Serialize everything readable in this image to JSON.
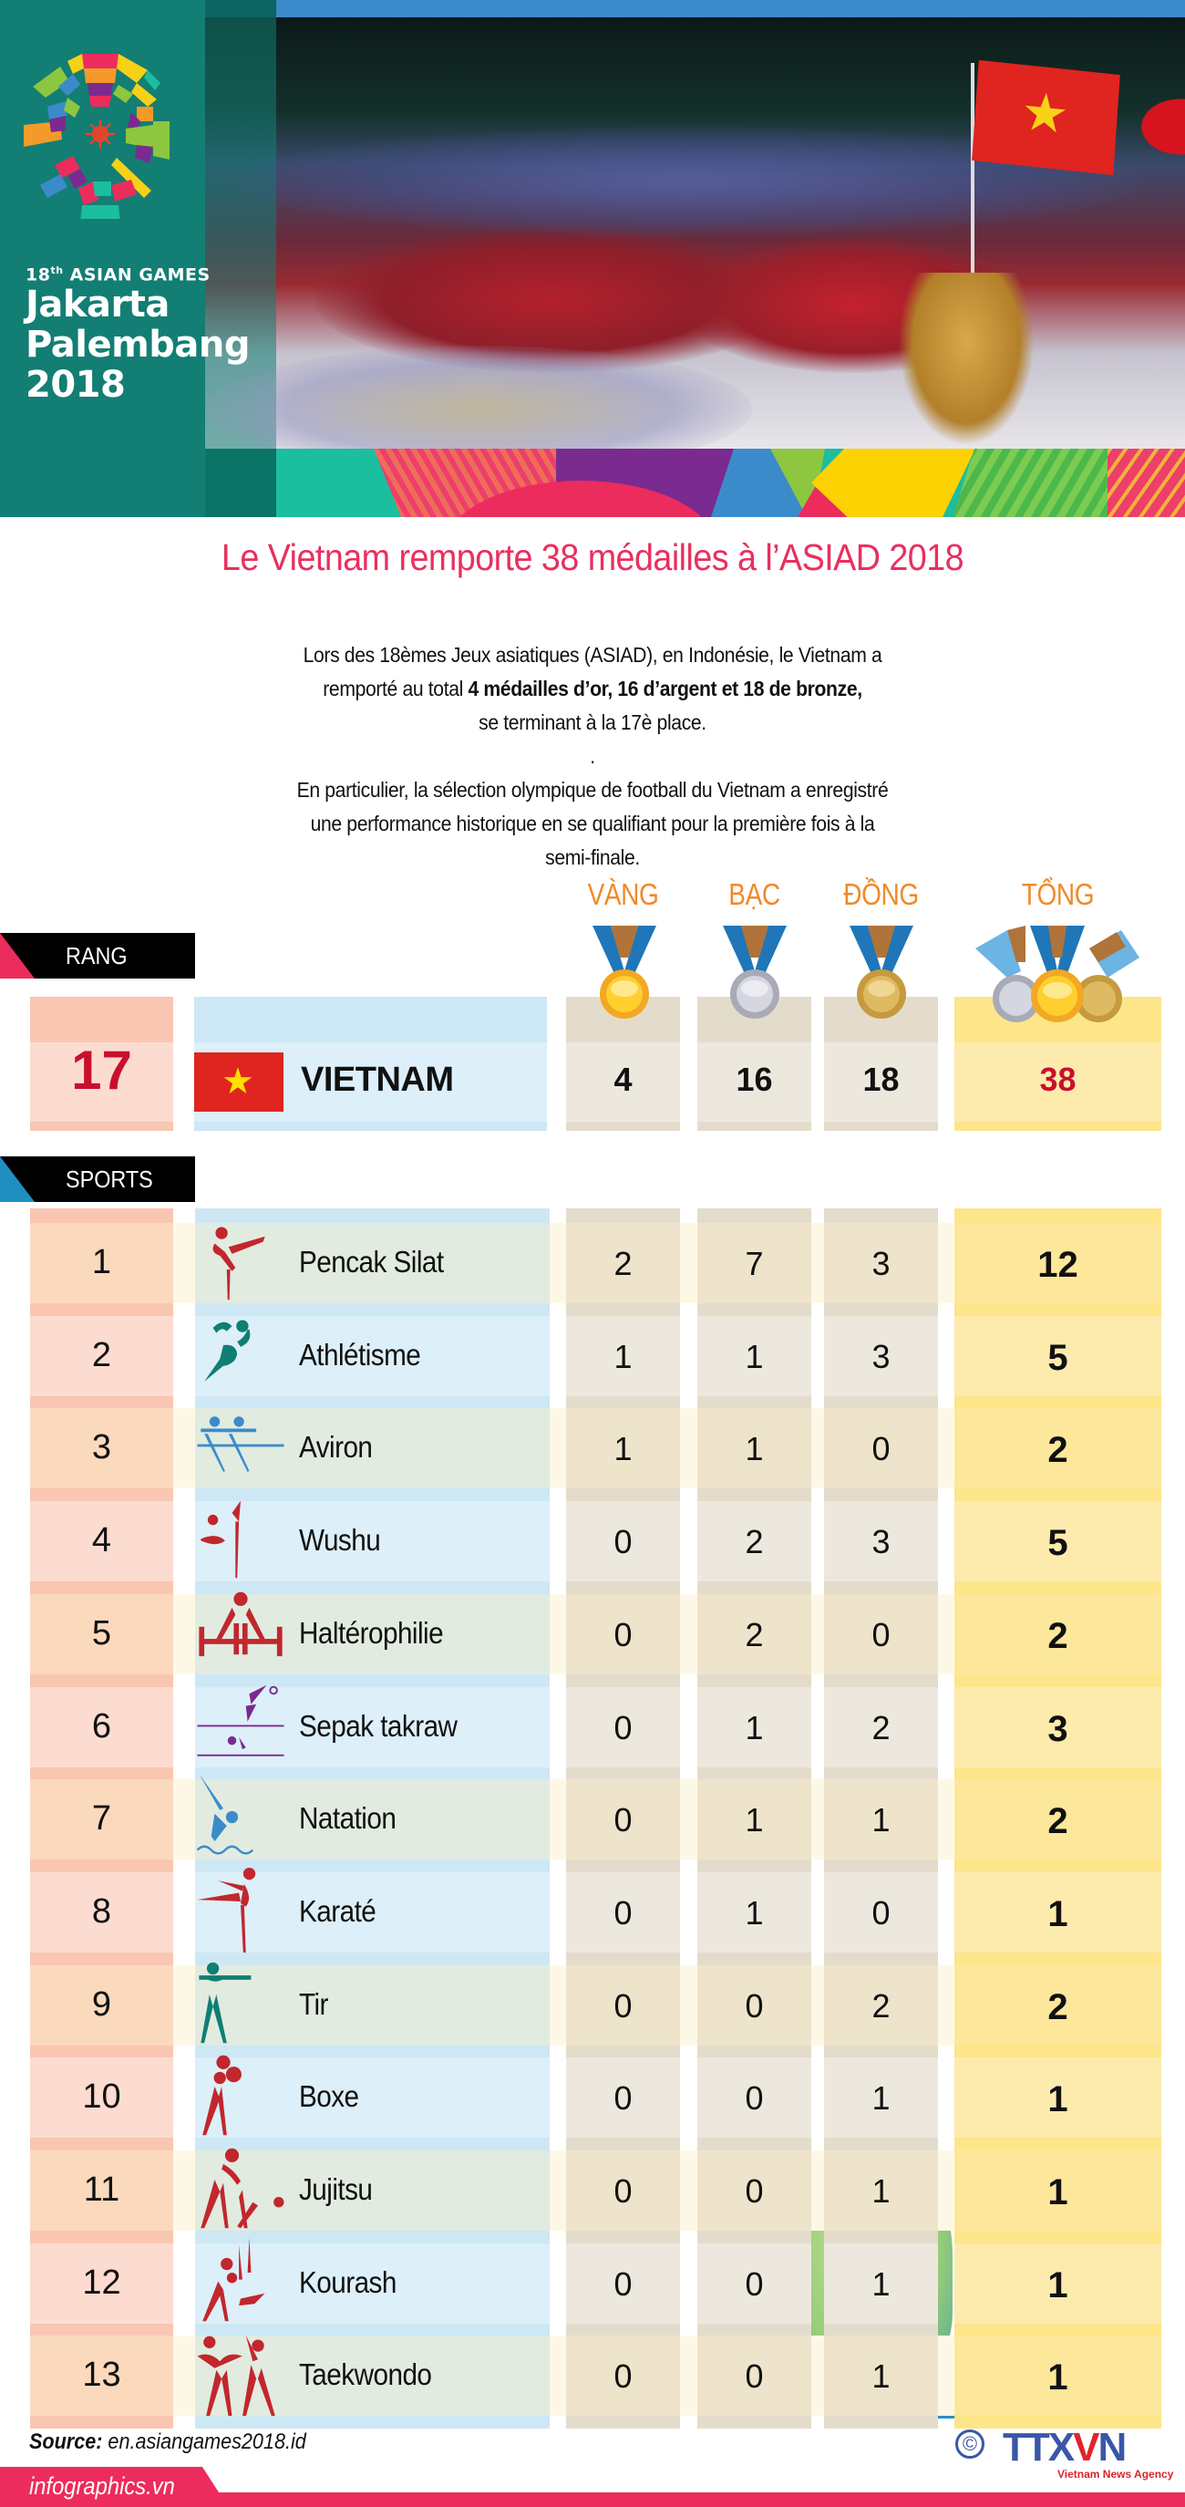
{
  "header": {
    "logo_small": "18",
    "logo_small_sup": "th",
    "logo_small_rest": " ASIAN GAMES",
    "logo_line1": "Jakarta",
    "logo_line2": "Palembang",
    "logo_line3": "2018",
    "colors": {
      "teal": "#137E74",
      "blue_bar": "#3B8BCB"
    }
  },
  "title": "Le Vietnam remporte 38 médailles à l’ASIAD 2018",
  "intro": {
    "line1": "Lors des 18èmes Jeux asiatiques (ASIAD), en Indonésie, le Vietnam a",
    "line2_pre": "remporté au total ",
    "line2_bold": "4 médailles d’or, 16 d’argent et 18 de bronze,",
    "line3": "se terminant à la 17è place.",
    "separator": ".",
    "line4": "En particulier, la sélection olympique de football du Vietnam a enregistré",
    "line5": "une performance historique en se qualifiant pour la première fois à la",
    "line6": "semi-finale."
  },
  "medal_headers": {
    "gold": "VÀNG",
    "silver": "BẠC",
    "bronze": "ĐỒNG",
    "total": "TỔNG"
  },
  "rank_tag": "RANG",
  "sports_tag": "SPORTS",
  "country": {
    "rank": "17",
    "name": "VIETNAM",
    "gold": "4",
    "silver": "16",
    "bronze": "18",
    "total": "38"
  },
  "sports": [
    {
      "rank": "1",
      "name": "Pencak Silat",
      "gold": "2",
      "silver": "7",
      "bronze": "3",
      "total": "12",
      "icon": "pencak-silat-icon",
      "icon_color": "#C1272D"
    },
    {
      "rank": "2",
      "name": "Athlétisme",
      "gold": "1",
      "silver": "1",
      "bronze": "3",
      "total": "5",
      "icon": "athletics-icon",
      "icon_color": "#0F7F73"
    },
    {
      "rank": "3",
      "name": "Aviron",
      "gold": "1",
      "silver": "1",
      "bronze": "0",
      "total": "2",
      "icon": "rowing-icon",
      "icon_color": "#3B8BCB"
    },
    {
      "rank": "4",
      "name": "Wushu",
      "gold": "0",
      "silver": "2",
      "bronze": "3",
      "total": "5",
      "icon": "wushu-icon",
      "icon_color": "#C1272D"
    },
    {
      "rank": "5",
      "name": "Haltérophilie",
      "gold": "0",
      "silver": "2",
      "bronze": "0",
      "total": "2",
      "icon": "weightlifting-icon",
      "icon_color": "#C1272D"
    },
    {
      "rank": "6",
      "name": "Sepak takraw",
      "gold": "0",
      "silver": "1",
      "bronze": "2",
      "total": "3",
      "icon": "sepak-takraw-icon",
      "icon_color": "#7B2A90"
    },
    {
      "rank": "7",
      "name": "Natation",
      "gold": "0",
      "silver": "1",
      "bronze": "1",
      "total": "2",
      "icon": "swimming-icon",
      "icon_color": "#3B8BCB"
    },
    {
      "rank": "8",
      "name": "Karaté",
      "gold": "0",
      "silver": "1",
      "bronze": "0",
      "total": "1",
      "icon": "karate-icon",
      "icon_color": "#C1272D"
    },
    {
      "rank": "9",
      "name": "Tir",
      "gold": "0",
      "silver": "0",
      "bronze": "2",
      "total": "2",
      "icon": "shooting-icon",
      "icon_color": "#0F7F73"
    },
    {
      "rank": "10",
      "name": "Boxe",
      "gold": "0",
      "silver": "0",
      "bronze": "1",
      "total": "1",
      "icon": "boxing-icon",
      "icon_color": "#C1272D"
    },
    {
      "rank": "11",
      "name": "Jujitsu",
      "gold": "0",
      "silver": "0",
      "bronze": "1",
      "total": "1",
      "icon": "jujitsu-icon",
      "icon_color": "#C1272D"
    },
    {
      "rank": "12",
      "name": "Kourash",
      "gold": "0",
      "silver": "0",
      "bronze": "1",
      "total": "1",
      "icon": "kurash-icon",
      "icon_color": "#C1272D"
    },
    {
      "rank": "13",
      "name": "Taekwondo",
      "gold": "0",
      "silver": "0",
      "bronze": "1",
      "total": "1",
      "icon": "taekwondo-icon",
      "icon_color": "#C1272D"
    }
  ],
  "footer": {
    "source_label": "Source:",
    "source_value": " en.asiangames2018.id",
    "site": "infographics.vn",
    "copyright": "©",
    "agency_logo": "TTX",
    "agency_logo_v": "V",
    "agency_logo_n": "N",
    "agency_name": "Vietnam News Agency"
  },
  "colors": {
    "accent_pink": "#E8305E",
    "medal_label_orange": "#F0892A",
    "rank_red": "#C8102E",
    "flag_red": "#E0241F",
    "flag_star": "#FFE000"
  }
}
